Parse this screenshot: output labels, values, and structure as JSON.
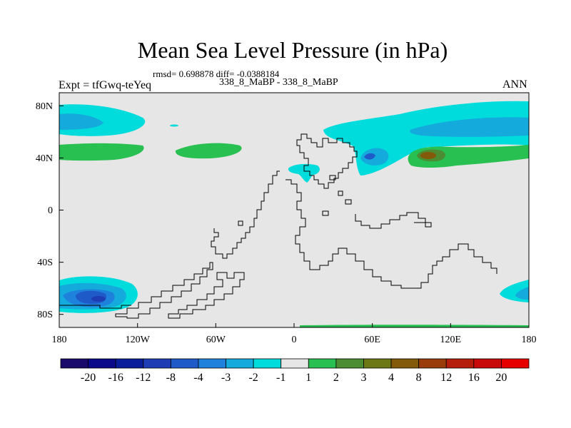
{
  "chart_data": {
    "type": "heatmap",
    "title": "Mean Sea Level Pressure (in hPa)",
    "stats_line": "rmsd= 0.698878 diff= -0.0388184",
    "experiments_line": "338_8_MaBP - 338_8_MaBP",
    "left_label": "Expt = tfGwq-teYeq",
    "right_label": "ANN",
    "x_ticks": [
      "180",
      "120W",
      "60W",
      "0",
      "60E",
      "120E",
      "180"
    ],
    "y_ticks": [
      "80N",
      "40N",
      "0",
      "40S",
      "80S"
    ],
    "x_range": [
      -180,
      180
    ],
    "y_range": [
      -90,
      90
    ],
    "colorbar_labels": [
      "-20",
      "-16",
      "-12",
      "-8",
      "-4",
      "-3",
      "-2",
      "-1",
      "1",
      "2",
      "3",
      "4",
      "8",
      "12",
      "16",
      "20"
    ],
    "colorbar_colors": [
      "#1a0a6b",
      "#0a0a8a",
      "#0a1e9c",
      "#1e3cb4",
      "#1e5ac8",
      "#1e82dc",
      "#14aadc",
      "#00dcdc",
      "#e6e6e6",
      "#28c050",
      "#4c8c32",
      "#6c7814",
      "#825a0a",
      "#9a3c0a",
      "#b41e0a",
      "#c80a0a",
      "#e60000"
    ],
    "regions": [
      {
        "name": "north-pacific-low",
        "level": "-2 to -4"
      },
      {
        "name": "north-atlantic-high",
        "level": "1 to 2"
      },
      {
        "name": "eurasia-low",
        "level": "-1 to -3"
      },
      {
        "name": "central-asia-high",
        "level": "1 to 4"
      },
      {
        "name": "south-pacific-low",
        "level": "-1 to -8"
      },
      {
        "name": "southern-ocean-low",
        "level": "-1 to -2"
      }
    ]
  }
}
